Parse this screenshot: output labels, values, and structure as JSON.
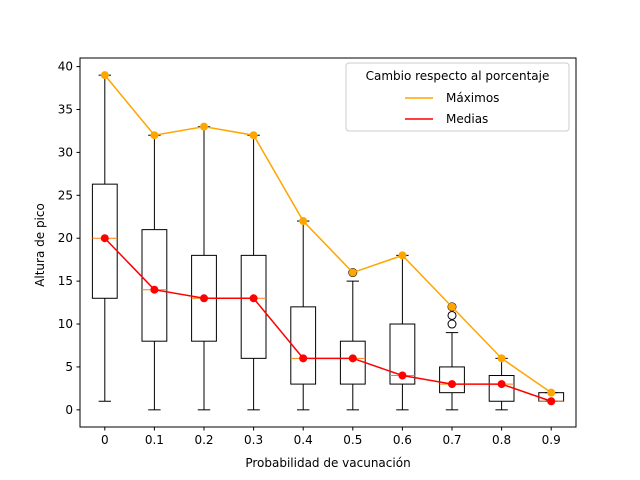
{
  "chart_data": {
    "type": "box",
    "xlabel": "Probabilidad de vacunación",
    "ylabel": "Altura de pico",
    "ylim": [
      -2,
      41
    ],
    "y_ticks": [
      0,
      5,
      10,
      15,
      20,
      25,
      30,
      35,
      40
    ],
    "categories": [
      "0",
      "0.1",
      "0.2",
      "0.3",
      "0.4",
      "0.5",
      "0.6",
      "0.7",
      "0.8",
      "0.9"
    ],
    "boxes": [
      {
        "category": "0",
        "whisker_low": 1,
        "q1": 13,
        "median": 20,
        "q3": 26.3,
        "whisker_high": 39,
        "outliers": []
      },
      {
        "category": "0.1",
        "whisker_low": 0,
        "q1": 8,
        "median": 14,
        "q3": 21,
        "whisker_high": 32,
        "outliers": []
      },
      {
        "category": "0.2",
        "whisker_low": 0,
        "q1": 8,
        "median": 13,
        "q3": 18,
        "whisker_high": 33,
        "outliers": []
      },
      {
        "category": "0.3",
        "whisker_low": 0,
        "q1": 6,
        "median": 13,
        "q3": 18,
        "whisker_high": 32,
        "outliers": []
      },
      {
        "category": "0.4",
        "whisker_low": 0,
        "q1": 3,
        "median": 6,
        "q3": 12,
        "whisker_high": 22,
        "outliers": []
      },
      {
        "category": "0.5",
        "whisker_low": 0,
        "q1": 3,
        "median": 6,
        "q3": 8,
        "whisker_high": 15,
        "outliers": [
          16
        ]
      },
      {
        "category": "0.6",
        "whisker_low": 0,
        "q1": 3,
        "median": 4,
        "q3": 10,
        "whisker_high": 18,
        "outliers": []
      },
      {
        "category": "0.7",
        "whisker_low": 0,
        "q1": 2,
        "median": 3,
        "q3": 5,
        "whisker_high": 9,
        "outliers": [
          10,
          11,
          12
        ]
      },
      {
        "category": "0.8",
        "whisker_low": 0,
        "q1": 1,
        "median": 3,
        "q3": 4,
        "whisker_high": 6,
        "outliers": []
      },
      {
        "category": "0.9",
        "whisker_low": 1,
        "q1": 1,
        "median": 1,
        "q3": 2,
        "whisker_high": 2,
        "outliers": []
      }
    ],
    "series": [
      {
        "name": "Máximos",
        "color": "#ffa500",
        "values": [
          39,
          32,
          33,
          32,
          22,
          16,
          18,
          12,
          6,
          2
        ]
      },
      {
        "name": "Medias",
        "color": "#ff0000",
        "values": [
          20,
          14,
          13,
          13,
          6,
          6,
          4,
          3,
          3,
          1
        ]
      }
    ],
    "legend": {
      "title": "Cambio respecto al porcentaje",
      "position": "top-right"
    },
    "grid": false
  }
}
